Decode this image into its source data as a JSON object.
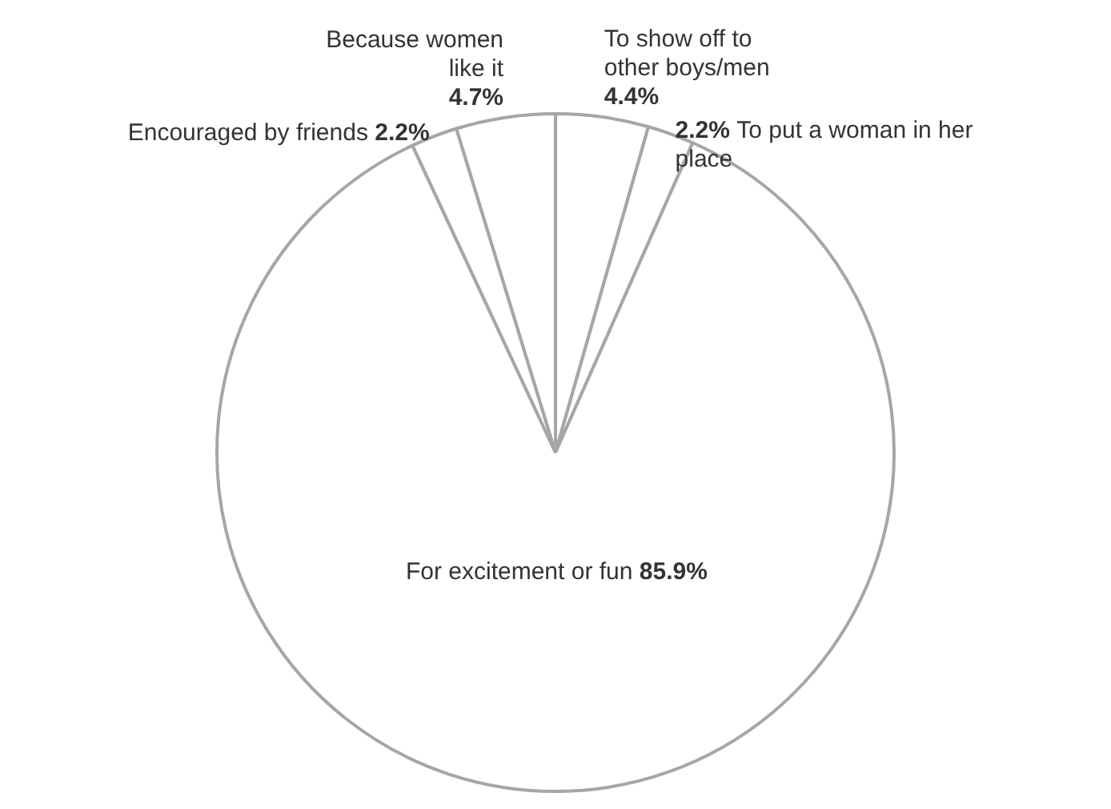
{
  "chart_data": {
    "type": "pie",
    "categories": [
      "To show off to other boys/men",
      "To put a woman in her place",
      "For excitement or fun",
      "Encouraged by friends",
      "Because women like it"
    ],
    "values": [
      4.4,
      2.2,
      85.9,
      2.2,
      4.7
    ],
    "value_labels": [
      "4.4%",
      "2.2%",
      "85.9%",
      "2.2%",
      "4.7%"
    ],
    "colors": [
      "#ffffff",
      "#ffffff",
      "#ffffff",
      "#ffffff",
      "#ffffff"
    ],
    "legend": false
  }
}
